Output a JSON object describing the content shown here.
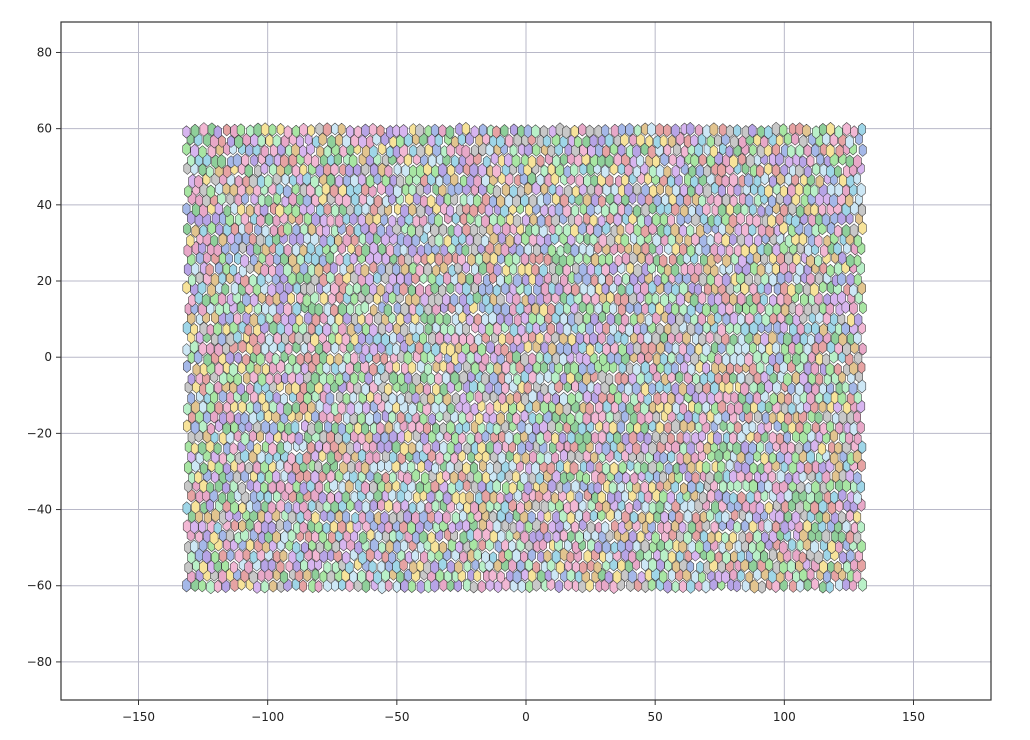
{
  "chart_data": {
    "type": "scatter",
    "title": "",
    "xlabel": "",
    "ylabel": "",
    "xlim": [
      -180,
      180
    ],
    "ylim": [
      -90,
      88
    ],
    "x_ticks": [
      -150,
      -100,
      -50,
      0,
      50,
      100,
      150
    ],
    "y_ticks": [
      -80,
      -60,
      -40,
      -20,
      0,
      20,
      40,
      60,
      80
    ],
    "x_tick_labels": [
      "−150",
      "−100",
      "−50",
      "0",
      "50",
      "100",
      "150"
    ],
    "y_tick_labels": [
      "−80",
      "−60",
      "−40",
      "−20",
      "0",
      "20",
      "40",
      "60",
      "80"
    ],
    "grid": true,
    "legend": "none",
    "cell_region": {
      "x": [
        -131,
        131
      ],
      "y": [
        -60,
        60
      ]
    },
    "cell_spacing": 3.0,
    "cell_shape": "hexagon",
    "cell_edge_color": "#3a3a3a",
    "palette": [
      "#a8e6a3",
      "#b7a4e6",
      "#f2b8d4",
      "#f7e39a",
      "#9fd6e8",
      "#c8c8c8",
      "#e6a3a3",
      "#b9f0c8",
      "#d7b5ef",
      "#8fcf9a",
      "#e2c48f",
      "#a5b8e8",
      "#e8a8c8",
      "#cde7f5"
    ]
  }
}
